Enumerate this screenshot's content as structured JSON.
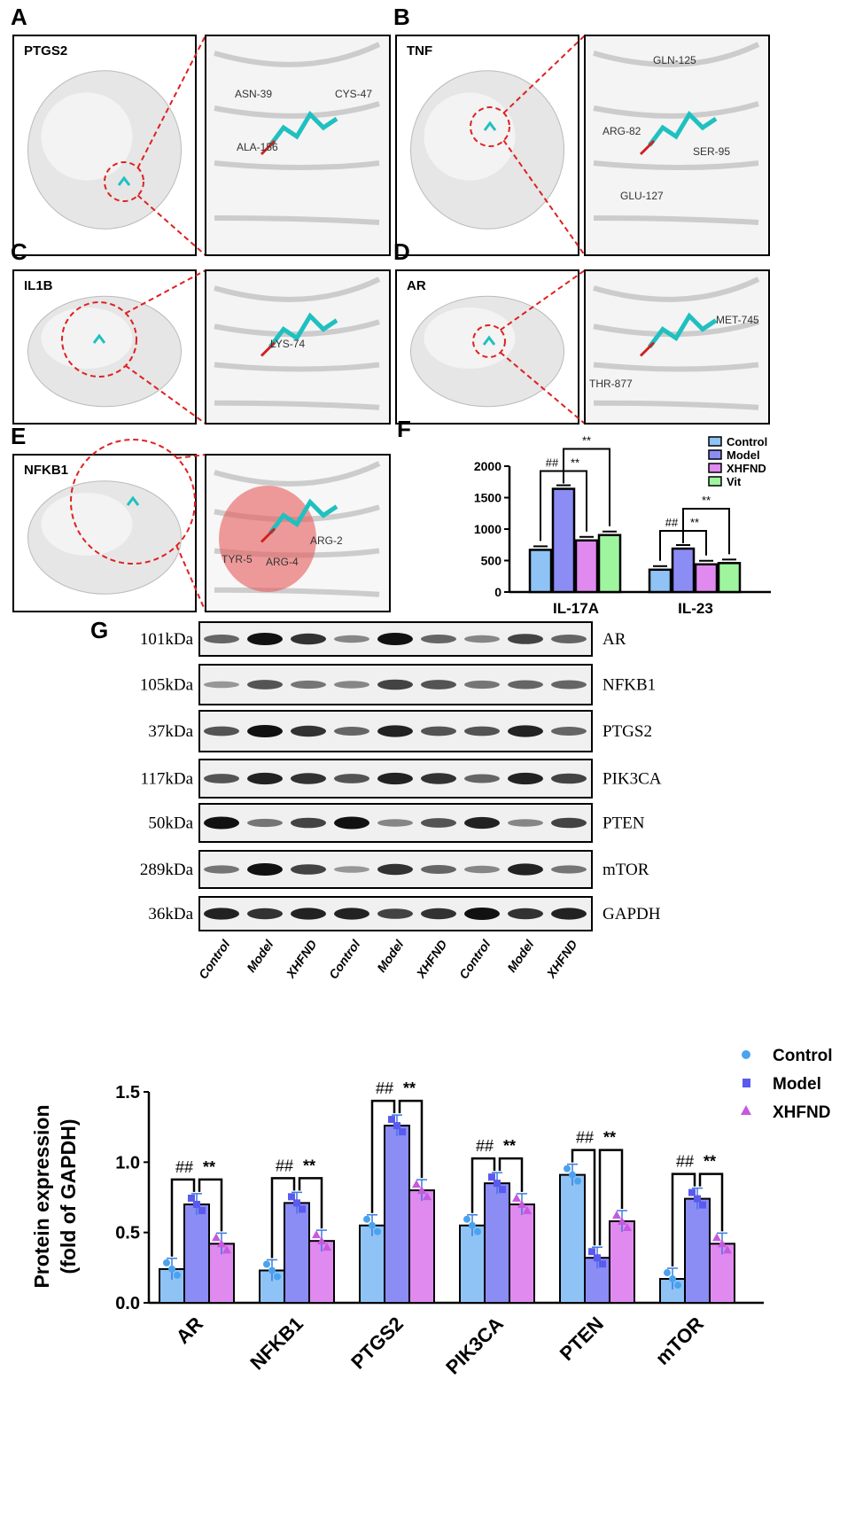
{
  "panels": {
    "A": {
      "letter": "A",
      "protein": "PTGS2",
      "residues": [
        "ASN-39",
        "CYS-47",
        "ALA-156"
      ]
    },
    "B": {
      "letter": "B",
      "protein": "TNF",
      "residues": [
        "GLN-125",
        "ARG-82",
        "SER-95",
        "GLU-127"
      ]
    },
    "C": {
      "letter": "C",
      "protein": "IL1B",
      "residues": [
        "LYS-74"
      ]
    },
    "D": {
      "letter": "D",
      "protein": "AR",
      "residues": [
        "MET-745",
        "THR-877"
      ]
    },
    "E": {
      "letter": "E",
      "protein": "NFKB1",
      "residues": [
        "TYR-5",
        "ARG-4",
        "ARG-2"
      ]
    },
    "F": {
      "letter": "F"
    },
    "G": {
      "letter": "G"
    }
  },
  "blot": {
    "rows": [
      {
        "kda": "101kDa",
        "protein": "AR"
      },
      {
        "kda": "105kDa",
        "protein": "NFKB1"
      },
      {
        "kda": "37kDa",
        "protein": "PTGS2"
      },
      {
        "kda": "117kDa",
        "protein": "PIK3CA"
      },
      {
        "kda": "50kDa",
        "protein": "PTEN"
      },
      {
        "kda": "289kDa",
        "protein": "mTOR"
      },
      {
        "kda": "36kDa",
        "protein": "GAPDH"
      }
    ],
    "lanes": [
      "Control",
      "Model",
      "XHFND",
      "Control",
      "Model",
      "XHFND",
      "Control",
      "Model",
      "XHFND"
    ]
  },
  "chart_data": [
    {
      "type": "bar",
      "title": "",
      "xlabel": "",
      "ylabel": "",
      "ylim": [
        0,
        2000
      ],
      "yticks": [
        "0",
        "500",
        "1000",
        "1500",
        "2000"
      ],
      "categories": [
        "IL-17A",
        "IL-23"
      ],
      "series": [
        {
          "name": "Control",
          "color": "#8fc3f5",
          "values": [
            670,
            355
          ]
        },
        {
          "name": "Model",
          "color": "#8c8cf5",
          "values": [
            1640,
            690
          ]
        },
        {
          "name": "XHFND",
          "color": "#e08af0",
          "values": [
            820,
            440
          ]
        },
        {
          "name": "Vit",
          "color": "#9ef59e",
          "values": [
            905,
            460
          ]
        }
      ],
      "annotations": [
        "##",
        "**",
        "**",
        "##",
        "**",
        "**"
      ],
      "legend": "top-right"
    },
    {
      "type": "bar",
      "title": "",
      "xlabel": "",
      "ylabel": "Protein expression (fold of GAPDH)",
      "ylabel_lines": [
        "Protein expression",
        "(fold of GAPDH)"
      ],
      "ylim": [
        0,
        1.5
      ],
      "yticks": [
        "0.0",
        "0.5",
        "1.0",
        "1.5"
      ],
      "categories": [
        "AR",
        "NFKB1",
        "PTGS2",
        "PIK3CA",
        "PTEN",
        "mTOR"
      ],
      "series": [
        {
          "name": "Control",
          "color": "#8fc3f5",
          "values": [
            0.24,
            0.23,
            0.55,
            0.55,
            0.91,
            0.17
          ]
        },
        {
          "name": "Model",
          "color": "#8c8cf5",
          "values": [
            0.7,
            0.71,
            1.26,
            0.85,
            0.32,
            0.74
          ]
        },
        {
          "name": "XHFND",
          "color": "#e08af0",
          "values": [
            0.42,
            0.44,
            0.8,
            0.7,
            0.58,
            0.42
          ]
        }
      ],
      "annotations": [
        "##",
        "**"
      ],
      "legend": "top-right"
    }
  ]
}
